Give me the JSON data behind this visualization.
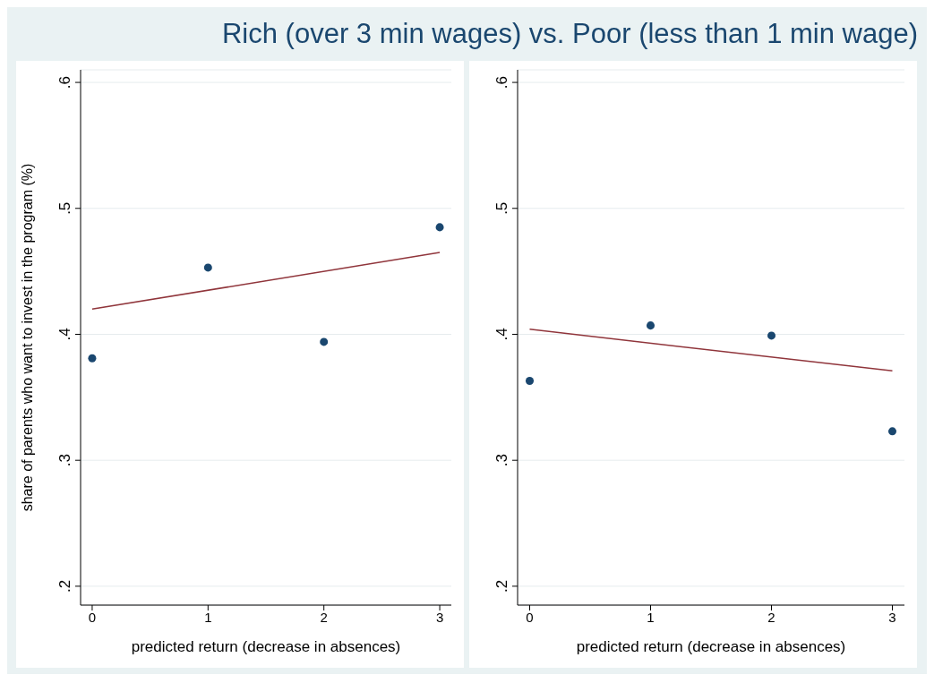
{
  "chart_data": [
    {
      "type": "scatter",
      "title": "Rich (over 3 min wages) vs. Poor (less than 1 min wage)",
      "xlabel": "predicted return (decrease in absences)",
      "ylabel": "share of parents who want to invest in the program (%)",
      "xlim": [
        -0.1,
        3.1
      ],
      "xticks": [
        0,
        1,
        2,
        3
      ],
      "ylim": [
        0.185,
        0.61
      ],
      "yticks": [
        {
          "value": 0.2,
          "label": ".2"
        },
        {
          "value": 0.3,
          "label": ".3"
        },
        {
          "value": 0.4,
          "label": ".4"
        },
        {
          "value": 0.5,
          "label": ".5"
        },
        {
          "value": 0.6,
          "label": ".6"
        }
      ],
      "grid": "y",
      "series": [
        {
          "type": "scatter",
          "marker": "circle",
          "color": "#1a476f",
          "x": [
            0,
            1,
            2,
            3
          ],
          "values": [
            0.381,
            0.453,
            0.394,
            0.485
          ]
        },
        {
          "type": "line",
          "marker": "none",
          "color": "#90353b",
          "x": [
            0,
            3
          ],
          "values": [
            0.42,
            0.465
          ]
        }
      ]
    },
    {
      "type": "scatter",
      "xlabel": "predicted return (decrease in absences)",
      "xlim": [
        -0.1,
        3.1
      ],
      "xticks": [
        0,
        1,
        2,
        3
      ],
      "ylim": [
        0.185,
        0.61
      ],
      "yticks": [
        {
          "value": 0.2,
          "label": ".2"
        },
        {
          "value": 0.3,
          "label": ".3"
        },
        {
          "value": 0.4,
          "label": ".4"
        },
        {
          "value": 0.5,
          "label": ".5"
        },
        {
          "value": 0.6,
          "label": ".6"
        }
      ],
      "grid": "y",
      "series": [
        {
          "type": "scatter",
          "marker": "circle",
          "color": "#1a476f",
          "x": [
            0,
            1,
            2,
            3
          ],
          "values": [
            0.363,
            0.407,
            0.399,
            0.323
          ]
        },
        {
          "type": "line",
          "marker": "none",
          "color": "#90353b",
          "x": [
            0,
            3
          ],
          "values": [
            0.404,
            0.371
          ]
        }
      ]
    }
  ]
}
